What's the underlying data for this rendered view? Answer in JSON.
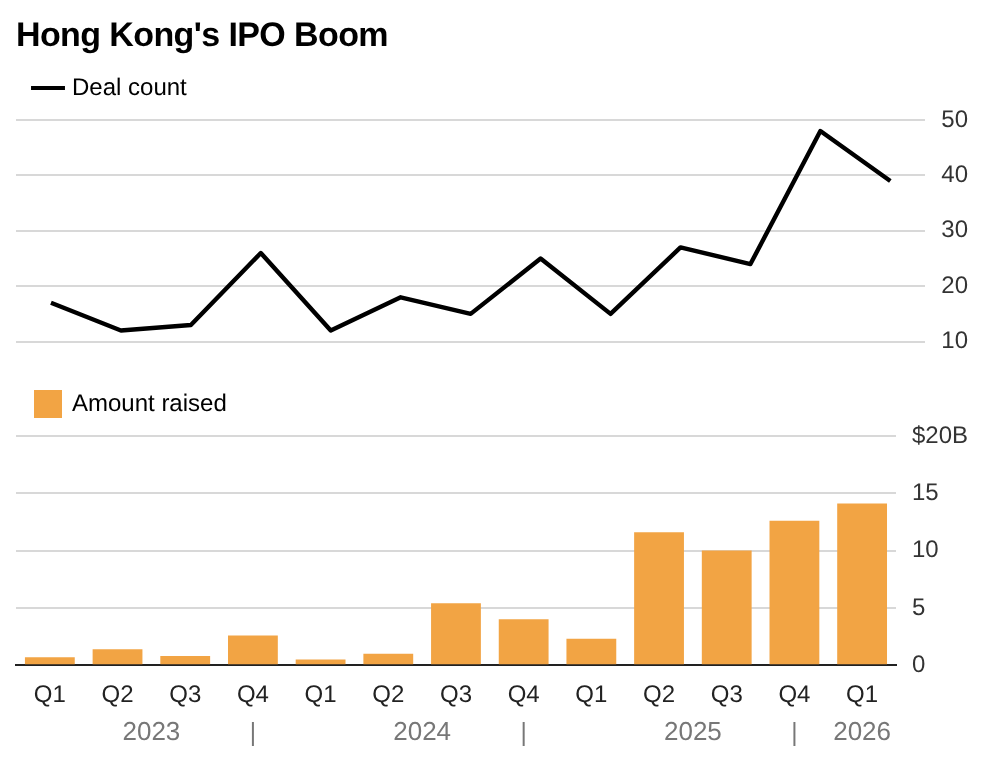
{
  "chart_data": [
    {
      "type": "line",
      "title": "Hong Kong's IPO Boom",
      "categories": [
        null,
        null,
        null,
        null,
        null,
        null,
        null,
        null,
        null,
        null,
        null,
        null,
        null
      ],
      "series": [
        {
          "name": "Deal count",
          "color": "#000000",
          "values": [
            17,
            12,
            13,
            26,
            12,
            18,
            15,
            25,
            15,
            27,
            24,
            48,
            39
          ]
        }
      ],
      "ylim": [
        10,
        50
      ],
      "yticks": [
        10,
        20,
        30,
        40,
        50
      ],
      "grid": "y",
      "legend": "top left",
      "marker": "none",
      "tick_labels": "y"
    },
    {
      "type": "bar",
      "categories": [
        "Q1",
        "Q2",
        "Q3",
        "Q4",
        "Q1",
        "Q2",
        "Q3",
        "Q4",
        "Q1",
        "Q2",
        "Q3",
        "Q4",
        "Q1"
      ],
      "series": [
        {
          "name": "Amount raised",
          "color": "#f2a444",
          "values": [
            0.7,
            1.4,
            0.8,
            2.6,
            0.5,
            1.0,
            5.4,
            4.0,
            2.3,
            11.6,
            10.0,
            12.6,
            14.1
          ]
        }
      ],
      "ylim": [
        0,
        20
      ],
      "yticks": [
        0,
        5,
        10,
        15,
        {
          "value": 20,
          "label": "$20B"
        }
      ],
      "grid": "y",
      "legend": "top left",
      "annotations": [
        "2023",
        "2024",
        "2025",
        "2026"
      ]
    }
  ]
}
